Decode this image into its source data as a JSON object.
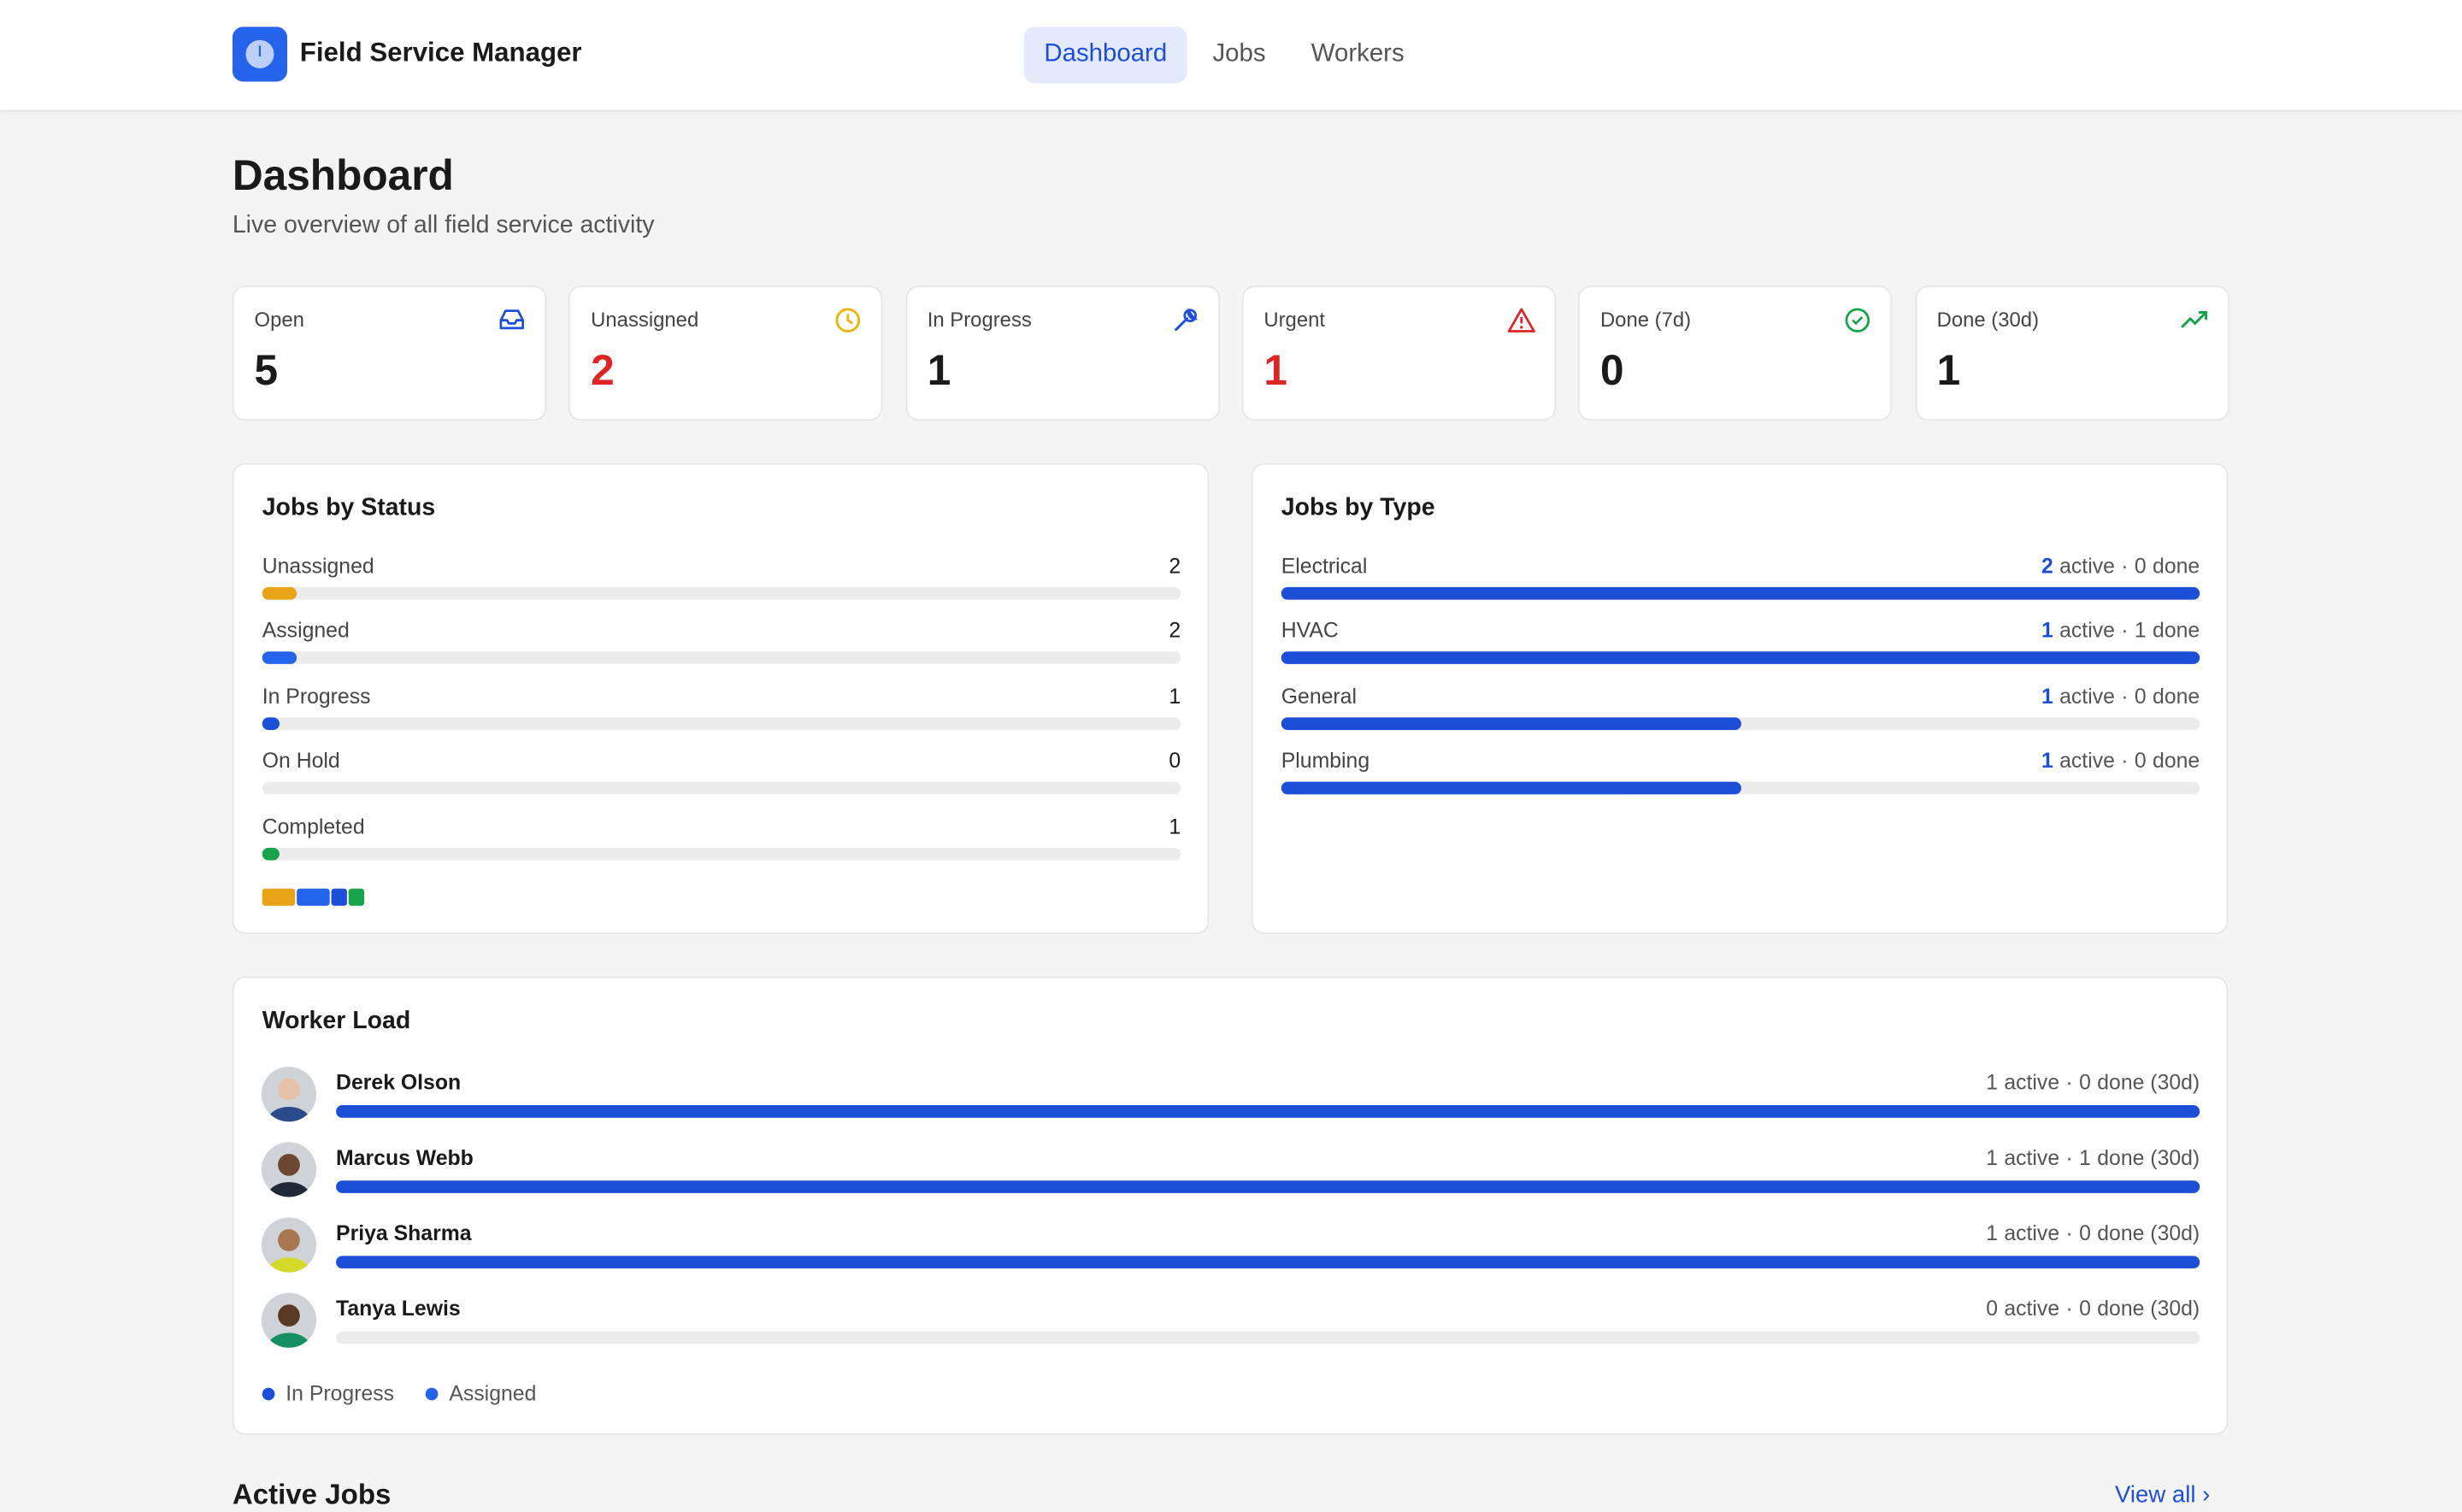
{
  "header": {
    "brand": "Field Service Manager",
    "nav": [
      {
        "label": "Dashboard",
        "active": true
      },
      {
        "label": "Jobs",
        "active": false
      },
      {
        "label": "Workers",
        "active": false
      }
    ]
  },
  "page": {
    "title": "Dashboard",
    "subtitle": "Live overview of all field service activity"
  },
  "stats": [
    {
      "label": "Open",
      "value": 5,
      "color": "#1a1a1a",
      "icon_color": "#1d4ed8"
    },
    {
      "label": "Unassigned",
      "value": 2,
      "color": "#dc2626",
      "icon_color": "#eab308"
    },
    {
      "label": "In Progress",
      "value": 1,
      "color": "#1a1a1a",
      "icon_color": "#1d4ed8"
    },
    {
      "label": "Urgent",
      "value": 1,
      "color": "#dc2626",
      "icon_color": "#dc2626"
    },
    {
      "label": "Done (7d)",
      "value": 0,
      "color": "#1a1a1a",
      "icon_color": "#16a34a"
    },
    {
      "label": "Done (30d)",
      "value": 1,
      "color": "#1a1a1a",
      "icon_color": "#16a34a"
    }
  ],
  "jobs_by_status": {
    "title": "Jobs by Status",
    "items": [
      {
        "label": "Unassigned",
        "count": 2,
        "color": "#e8a317"
      },
      {
        "label": "Assigned",
        "count": 2,
        "color": "#2563eb"
      },
      {
        "label": "In Progress",
        "count": 1,
        "color": "#1d4ed8"
      },
      {
        "label": "On Hold",
        "count": 0,
        "color": "#9ca3af"
      },
      {
        "label": "Completed",
        "count": 1,
        "color": "#16a34a"
      }
    ]
  },
  "jobs_by_type": {
    "title": "Jobs by Type",
    "active_word": "active",
    "separator": "·",
    "done_word": "done",
    "color": "#1d4ed8",
    "items": [
      {
        "label": "Electrical",
        "active": 2,
        "done": 0
      },
      {
        "label": "HVAC",
        "active": 1,
        "done": 1
      },
      {
        "label": "General",
        "active": 1,
        "done": 0
      },
      {
        "label": "Plumbing",
        "active": 1,
        "done": 0
      }
    ]
  },
  "worker_load": {
    "title": "Worker Load",
    "active_word": "active",
    "separator": "·",
    "done_word": "done (30d)",
    "color": "#1d4ed8",
    "workers": [
      {
        "name": "Derek Olson",
        "active": 1,
        "done": 0
      },
      {
        "name": "Marcus Webb",
        "active": 1,
        "done": 1
      },
      {
        "name": "Priya Sharma",
        "active": 1,
        "done": 0
      },
      {
        "name": "Tanya Lewis",
        "active": 0,
        "done": 0
      }
    ],
    "legend": [
      {
        "label": "In Progress",
        "color": "#1d4ed8"
      },
      {
        "label": "Assigned",
        "color": "#2563eb"
      }
    ]
  },
  "active_jobs": {
    "title": "Active Jobs",
    "link": "View all ›"
  }
}
